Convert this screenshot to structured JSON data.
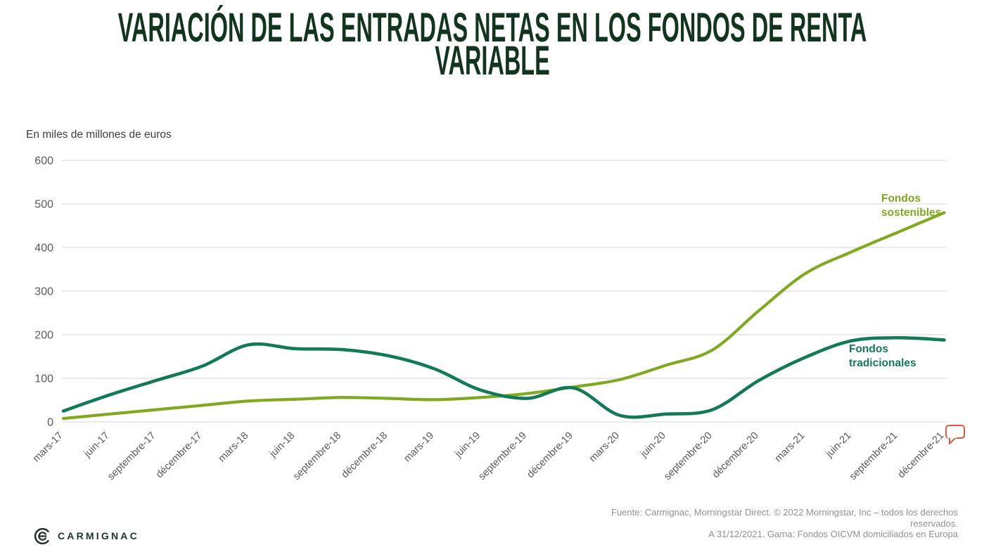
{
  "title": {
    "line1": "VARIACIÓN DE LAS ENTRADAS NETAS EN LOS FONDOS DE RENTA",
    "line2": "VARIABLE"
  },
  "subtitle": "En miles de millones de euros",
  "chart_data": {
    "type": "line",
    "title": "VARIACIÓN DE LAS ENTRADAS NETAS EN LOS FONDOS DE RENTA VARIABLE",
    "ylabel": "En miles de millones de euros",
    "ylim": [
      0,
      600
    ],
    "yticks": [
      0,
      100,
      200,
      300,
      400,
      500,
      600
    ],
    "grid": true,
    "legend_position": "inline-labels",
    "categories": [
      "mars-17",
      "juin-17",
      "septembre-17",
      "décembre-17",
      "mars-18",
      "juin-18",
      "septembre-18",
      "décembre-18",
      "mars-19",
      "juin-19",
      "septembre-19",
      "décembre-19",
      "mars-20",
      "juin-20",
      "septembre-20",
      "décembre-20",
      "mars-21",
      "juin-21",
      "septembre-21",
      "décembre-21"
    ],
    "series": [
      {
        "name": "Fondos sostenibles",
        "label_lines": [
          "Fondos",
          "sostenibles"
        ],
        "color": "#7FA91E",
        "values": [
          8,
          18,
          28,
          38,
          48,
          52,
          56,
          54,
          51,
          56,
          65,
          80,
          97,
          130,
          165,
          255,
          340,
          390,
          435,
          480
        ]
      },
      {
        "name": "Fondos tradicionales",
        "label_lines": [
          "Fondos",
          "tradicionales"
        ],
        "color": "#127A56",
        "values": [
          25,
          62,
          95,
          128,
          177,
          168,
          166,
          152,
          122,
          73,
          54,
          78,
          15,
          18,
          28,
          95,
          148,
          186,
          193,
          188
        ]
      }
    ]
  },
  "footer": {
    "source_line1": "Fuente: Carmignac, Morningstar Direct. © 2022 Morningstar, Inc – todos los derechos reservados.",
    "source_line2": "A 31/12/2021. Gama: Fondos OICVM domiciliados en Europa"
  },
  "logo": {
    "text": "CARMIGNAC"
  },
  "icons": {
    "comment_icon_color": "#E0593E"
  },
  "colors": {
    "title": "#12351F",
    "axis_text": "#595959",
    "gridline": "#DCDCDC",
    "footer_text": "#8C9297"
  }
}
